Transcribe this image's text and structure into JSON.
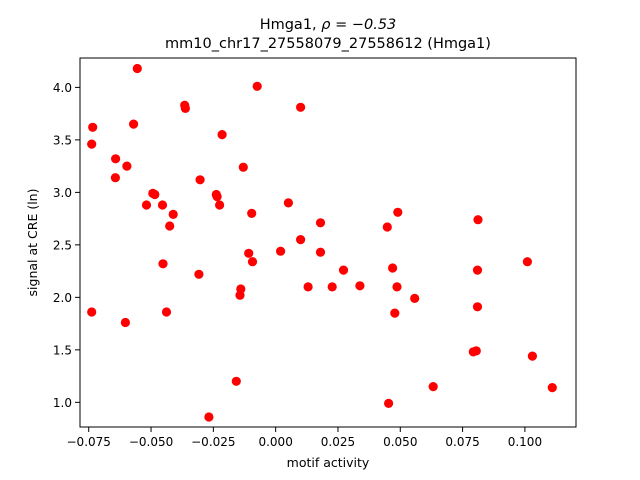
{
  "chart_data": {
    "type": "scatter",
    "title_line1_prefix": "Hmga1, ",
    "title_line1_math": "ρ = −0.53",
    "title_line2": "mm10_chr17_27558079_27558612 (Hmga1)",
    "xlabel": "motif activity",
    "ylabel": "signal at CRE (ln)",
    "xlim": [
      -0.0785,
      0.1205
    ],
    "ylim": [
      0.765,
      4.28
    ],
    "xticks": [
      -0.075,
      -0.05,
      -0.025,
      0.0,
      0.025,
      0.05,
      0.075,
      0.1
    ],
    "xtick_labels": [
      "−0.075",
      "−0.050",
      "−0.025",
      "0.000",
      "0.025",
      "0.050",
      "0.075",
      "0.100"
    ],
    "yticks": [
      1.0,
      1.5,
      2.0,
      2.5,
      3.0,
      3.5,
      4.0
    ],
    "ytick_labels": [
      "1.0",
      "1.5",
      "2.0",
      "2.5",
      "3.0",
      "3.5",
      "4.0"
    ],
    "grid": false,
    "point_color": "#ff0000",
    "points": [
      [
        -0.0555,
        4.18
      ],
      [
        -0.0074,
        4.01
      ],
      [
        -0.0365,
        3.83
      ],
      [
        -0.0362,
        3.8
      ],
      [
        0.01,
        3.81
      ],
      [
        -0.0734,
        3.62
      ],
      [
        -0.057,
        3.65
      ],
      [
        -0.0738,
        3.46
      ],
      [
        -0.0215,
        3.55
      ],
      [
        -0.0642,
        3.32
      ],
      [
        -0.0597,
        3.25
      ],
      [
        -0.0643,
        3.14
      ],
      [
        -0.013,
        3.24
      ],
      [
        -0.0303,
        3.12
      ],
      [
        -0.0493,
        2.99
      ],
      [
        -0.0485,
        2.98
      ],
      [
        -0.0238,
        2.98
      ],
      [
        -0.0235,
        2.96
      ],
      [
        -0.0518,
        2.88
      ],
      [
        -0.0454,
        2.88
      ],
      [
        -0.0225,
        2.88
      ],
      [
        0.0051,
        2.9
      ],
      [
        -0.0411,
        2.79
      ],
      [
        -0.0096,
        2.8
      ],
      [
        0.049,
        2.81
      ],
      [
        -0.0425,
        2.68
      ],
      [
        0.018,
        2.71
      ],
      [
        0.0812,
        2.74
      ],
      [
        0.0448,
        2.67
      ],
      [
        0.01,
        2.55
      ],
      [
        -0.0108,
        2.42
      ],
      [
        0.002,
        2.44
      ],
      [
        0.018,
        2.43
      ],
      [
        -0.0093,
        2.34
      ],
      [
        -0.0452,
        2.32
      ],
      [
        0.101,
        2.34
      ],
      [
        0.0272,
        2.26
      ],
      [
        0.0469,
        2.28
      ],
      [
        0.081,
        2.26
      ],
      [
        -0.0308,
        2.22
      ],
      [
        0.013,
        2.1
      ],
      [
        0.0227,
        2.1
      ],
      [
        0.0338,
        2.11
      ],
      [
        0.0487,
        2.1
      ],
      [
        -0.014,
        2.08
      ],
      [
        -0.0143,
        2.02
      ],
      [
        0.0558,
        1.99
      ],
      [
        0.081,
        1.91
      ],
      [
        -0.0738,
        1.86
      ],
      [
        -0.0438,
        1.86
      ],
      [
        0.0478,
        1.85
      ],
      [
        -0.0603,
        1.76
      ],
      [
        0.0793,
        1.48
      ],
      [
        0.0805,
        1.49
      ],
      [
        0.103,
        1.44
      ],
      [
        -0.0158,
        1.2
      ],
      [
        0.0632,
        1.15
      ],
      [
        0.111,
        1.14
      ],
      [
        0.0453,
        0.99
      ],
      [
        -0.0268,
        0.86
      ]
    ]
  }
}
